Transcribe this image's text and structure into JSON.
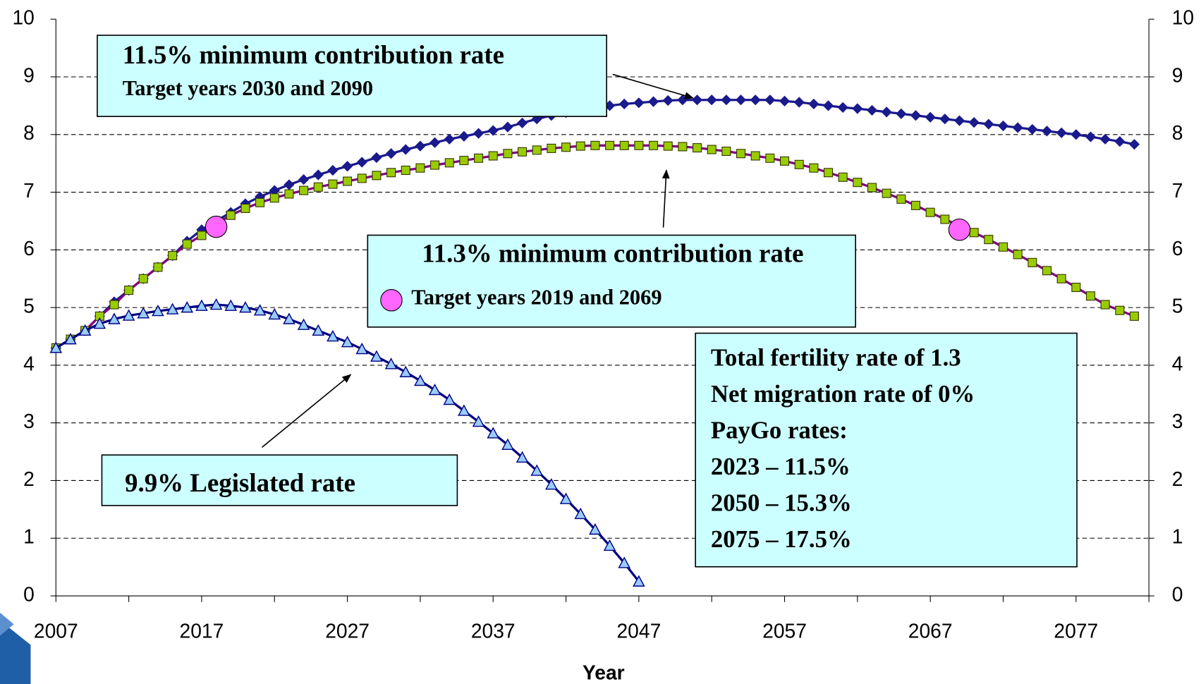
{
  "chart_data": {
    "type": "line",
    "xlabel": "Year",
    "xlim": [
      2007,
      2082
    ],
    "xticks": [
      2007,
      2017,
      2027,
      2037,
      2047,
      2057,
      2067,
      2077
    ],
    "xminor_ticks": [
      2012,
      2022,
      2032,
      2042,
      2052,
      2062,
      2072,
      2082
    ],
    "ylim": [
      0,
      10
    ],
    "yticks": [
      0,
      1,
      2,
      3,
      4,
      5,
      6,
      7,
      8,
      9,
      10
    ],
    "y2lim": [
      0,
      10
    ],
    "y2ticks": [
      0,
      1,
      2,
      3,
      4,
      5,
      6,
      7,
      8,
      9,
      10
    ],
    "grid": true,
    "x": [
      2007,
      2008,
      2009,
      2010,
      2011,
      2012,
      2013,
      2014,
      2015,
      2016,
      2017,
      2018,
      2019,
      2020,
      2021,
      2022,
      2023,
      2024,
      2025,
      2026,
      2027,
      2028,
      2029,
      2030,
      2031,
      2032,
      2033,
      2034,
      2035,
      2036,
      2037,
      2038,
      2039,
      2040,
      2041,
      2042,
      2043,
      2044,
      2045,
      2046,
      2047,
      2048,
      2049,
      2050,
      2051,
      2052,
      2053,
      2054,
      2055,
      2056,
      2057,
      2058,
      2059,
      2060,
      2061,
      2062,
      2063,
      2064,
      2065,
      2066,
      2067,
      2068,
      2069,
      2070,
      2071,
      2072,
      2073,
      2074,
      2075,
      2076,
      2077,
      2078,
      2079,
      2080,
      2081
    ],
    "series": [
      {
        "marker": "diamond",
        "color": "#1a1a8c",
        "line_color": "#1a1a8c",
        "values": [
          4.3,
          4.45,
          4.6,
          4.85,
          5.1,
          5.3,
          5.5,
          5.7,
          5.9,
          6.15,
          6.35,
          6.5,
          6.65,
          6.8,
          6.92,
          7.03,
          7.13,
          7.22,
          7.3,
          7.38,
          7.45,
          7.52,
          7.6,
          7.67,
          7.74,
          7.8,
          7.86,
          7.92,
          7.97,
          8.02,
          8.07,
          8.13,
          8.2,
          8.27,
          8.33,
          8.38,
          8.43,
          8.47,
          8.5,
          8.53,
          8.55,
          8.57,
          8.59,
          8.6,
          8.6,
          8.6,
          8.6,
          8.6,
          8.6,
          8.6,
          8.58,
          8.56,
          8.53,
          8.5,
          8.47,
          8.45,
          8.42,
          8.39,
          8.36,
          8.33,
          8.3,
          8.27,
          8.24,
          8.21,
          8.18,
          8.15,
          8.12,
          8.09,
          8.06,
          8.03,
          8.0,
          7.96,
          7.92,
          7.88,
          7.83
        ]
      },
      {
        "marker": "square",
        "color": "#99cc00",
        "line_color": "#800080",
        "values": [
          4.3,
          4.45,
          4.6,
          4.85,
          5.05,
          5.3,
          5.5,
          5.7,
          5.9,
          6.1,
          6.25,
          6.45,
          6.6,
          6.72,
          6.82,
          6.9,
          6.97,
          7.03,
          7.09,
          7.14,
          7.19,
          7.24,
          7.29,
          7.34,
          7.38,
          7.42,
          7.47,
          7.51,
          7.55,
          7.59,
          7.63,
          7.67,
          7.7,
          7.73,
          7.76,
          7.78,
          7.8,
          7.81,
          7.81,
          7.81,
          7.81,
          7.81,
          7.8,
          7.79,
          7.77,
          7.74,
          7.71,
          7.67,
          7.63,
          7.59,
          7.54,
          7.48,
          7.42,
          7.34,
          7.26,
          7.17,
          7.08,
          6.98,
          6.88,
          6.77,
          6.65,
          6.53,
          6.42,
          6.3,
          6.18,
          6.05,
          5.92,
          5.78,
          5.64,
          5.5,
          5.35,
          5.2,
          5.05,
          4.95,
          4.85
        ]
      },
      {
        "marker": "triangle",
        "color": "#99ccff",
        "line_color": "#000080",
        "values": [
          4.3,
          4.45,
          4.6,
          4.72,
          4.8,
          4.86,
          4.9,
          4.94,
          4.97,
          5.0,
          5.03,
          5.05,
          5.03,
          5.0,
          4.95,
          4.88,
          4.8,
          4.7,
          4.6,
          4.5,
          4.4,
          4.28,
          4.15,
          4.02,
          3.88,
          3.73,
          3.57,
          3.4,
          3.21,
          3.02,
          2.82,
          2.62,
          2.4,
          2.17,
          1.93,
          1.68,
          1.42,
          1.15,
          0.87,
          0.57,
          0.25,
          null,
          null,
          null,
          null,
          null,
          null,
          null,
          null,
          null,
          null,
          null,
          null,
          null,
          null,
          null,
          null,
          null,
          null,
          null,
          null,
          null,
          null,
          null,
          null,
          null,
          null,
          null,
          null,
          null,
          null,
          null,
          null,
          null,
          null
        ]
      },
      {
        "marker": "circle",
        "color": "#ff66ff",
        "x": [
          2018,
          2069
        ],
        "values": [
          6.4,
          6.35
        ]
      }
    ],
    "annotations": {
      "box1": [
        "11.5% minimum contribution rate",
        "Target years 2030 and 2090"
      ],
      "box2": [
        "11.3% minimum contribution rate",
        "Target years 2019 and 2069"
      ],
      "box3": [
        "9.9% Legislated rate"
      ],
      "box4": [
        "Total fertility rate of 1.3",
        "Net migration rate of 0%",
        "PayGo rates:",
        "2023 – 11.5%",
        "2050 – 15.3%",
        "2075 – 17.5%"
      ]
    },
    "annotation_color": "#ccffff"
  }
}
